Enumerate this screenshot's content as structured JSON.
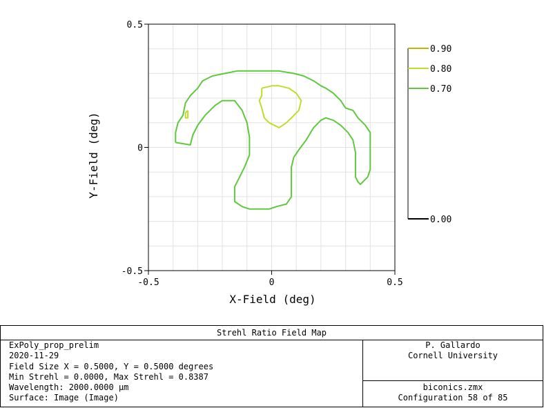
{
  "chart_data": {
    "type": "contour",
    "xlabel": "X-Field (deg)",
    "ylabel": "Y-Field (deg)",
    "xlim": [
      -0.5,
      0.5
    ],
    "ylim": [
      -0.5,
      0.5
    ],
    "x_ticks": [
      "-0.5",
      "0",
      "0.5"
    ],
    "y_ticks": [
      "0.5",
      "0",
      "-0.5"
    ],
    "grid": true,
    "legend_position": "right",
    "legend": [
      {
        "label": "0.90",
        "color": "#c8b400"
      },
      {
        "label": "0.80",
        "color": "#c0dc28"
      },
      {
        "label": "0.70",
        "color": "#5fc83c"
      },
      {
        "label": "0.00",
        "color": "#000000"
      }
    ],
    "contours": [
      {
        "level": 0.7,
        "color": "#5fc83c",
        "points": [
          [
            -0.39,
            0.02
          ],
          [
            -0.33,
            0.01
          ],
          [
            -0.32,
            0.05
          ],
          [
            -0.3,
            0.09
          ],
          [
            -0.27,
            0.13
          ],
          [
            -0.23,
            0.17
          ],
          [
            -0.2,
            0.19
          ],
          [
            -0.15,
            0.19
          ],
          [
            -0.12,
            0.15
          ],
          [
            -0.1,
            0.1
          ],
          [
            -0.09,
            0.04
          ],
          [
            -0.09,
            -0.03
          ],
          [
            -0.11,
            -0.08
          ],
          [
            -0.13,
            -0.12
          ],
          [
            -0.15,
            -0.16
          ],
          [
            -0.15,
            -0.19
          ],
          [
            -0.15,
            -0.22
          ],
          [
            -0.12,
            -0.24
          ],
          [
            -0.09,
            -0.25
          ],
          [
            -0.06,
            -0.25
          ],
          [
            -0.01,
            -0.25
          ],
          [
            0.02,
            -0.24
          ],
          [
            0.06,
            -0.23
          ],
          [
            0.08,
            -0.2
          ],
          [
            0.08,
            -0.15
          ],
          [
            0.08,
            -0.08
          ],
          [
            0.09,
            -0.04
          ],
          [
            0.11,
            -0.01
          ],
          [
            0.14,
            0.03
          ],
          [
            0.17,
            0.08
          ],
          [
            0.2,
            0.11
          ],
          [
            0.22,
            0.12
          ],
          [
            0.25,
            0.11
          ],
          [
            0.28,
            0.09
          ],
          [
            0.31,
            0.06
          ],
          [
            0.33,
            0.03
          ],
          [
            0.34,
            -0.02
          ],
          [
            0.34,
            -0.08
          ],
          [
            0.34,
            -0.12
          ],
          [
            0.35,
            -0.14
          ],
          [
            0.36,
            -0.15
          ],
          [
            0.39,
            -0.12
          ],
          [
            0.4,
            -0.09
          ],
          [
            0.4,
            -0.05
          ],
          [
            0.4,
            0.01
          ],
          [
            0.4,
            0.06
          ],
          [
            0.38,
            0.09
          ],
          [
            0.35,
            0.12
          ],
          [
            0.33,
            0.15
          ],
          [
            0.3,
            0.16
          ],
          [
            0.28,
            0.19
          ],
          [
            0.25,
            0.22
          ],
          [
            0.22,
            0.24
          ],
          [
            0.2,
            0.25
          ],
          [
            0.17,
            0.27
          ],
          [
            0.13,
            0.29
          ],
          [
            0.09,
            0.3
          ],
          [
            0.03,
            0.31
          ],
          [
            -0.03,
            0.31
          ],
          [
            -0.08,
            0.31
          ],
          [
            -0.14,
            0.31
          ],
          [
            -0.19,
            0.3
          ],
          [
            -0.24,
            0.29
          ],
          [
            -0.28,
            0.27
          ],
          [
            -0.3,
            0.24
          ],
          [
            -0.33,
            0.21
          ],
          [
            -0.35,
            0.18
          ],
          [
            -0.36,
            0.13
          ],
          [
            -0.38,
            0.1
          ],
          [
            -0.39,
            0.06
          ],
          [
            -0.39,
            0.02
          ]
        ]
      },
      {
        "level": 0.8,
        "color": "#c0dc28",
        "points": [
          [
            -0.04,
            0.24
          ],
          [
            0.0,
            0.25
          ],
          [
            0.03,
            0.25
          ],
          [
            0.07,
            0.24
          ],
          [
            0.1,
            0.22
          ],
          [
            0.12,
            0.19
          ],
          [
            0.11,
            0.15
          ],
          [
            0.08,
            0.12
          ],
          [
            0.06,
            0.1
          ],
          [
            0.03,
            0.08
          ],
          [
            -0.01,
            0.1
          ],
          [
            -0.03,
            0.12
          ],
          [
            -0.04,
            0.16
          ],
          [
            -0.05,
            0.19
          ],
          [
            -0.04,
            0.21
          ],
          [
            -0.04,
            0.24
          ]
        ]
      },
      {
        "level": 0.8,
        "color": "#c0dc28",
        "points": [
          [
            -0.34,
            0.15
          ],
          [
            -0.35,
            0.14
          ],
          [
            -0.35,
            0.12
          ],
          [
            -0.34,
            0.12
          ],
          [
            -0.34,
            0.13
          ],
          [
            -0.34,
            0.15
          ]
        ]
      }
    ]
  },
  "panel": {
    "title": "Strehl Ratio Field Map",
    "left_lines": [
      "ExPoly_prop_prelim",
      "2020-11-29",
      "Field Size X = 0.5000, Y = 0.5000 degrees",
      "Min Strehl = 0.0000, Max Strehl = 0.8387",
      "Wavelength: 2000.0000 µm",
      "Surface: Image (Image)"
    ],
    "right_top": [
      "P. Gallardo",
      "Cornell University"
    ],
    "right_bottom": [
      "biconics.zmx",
      "Configuration 58 of 85"
    ]
  }
}
